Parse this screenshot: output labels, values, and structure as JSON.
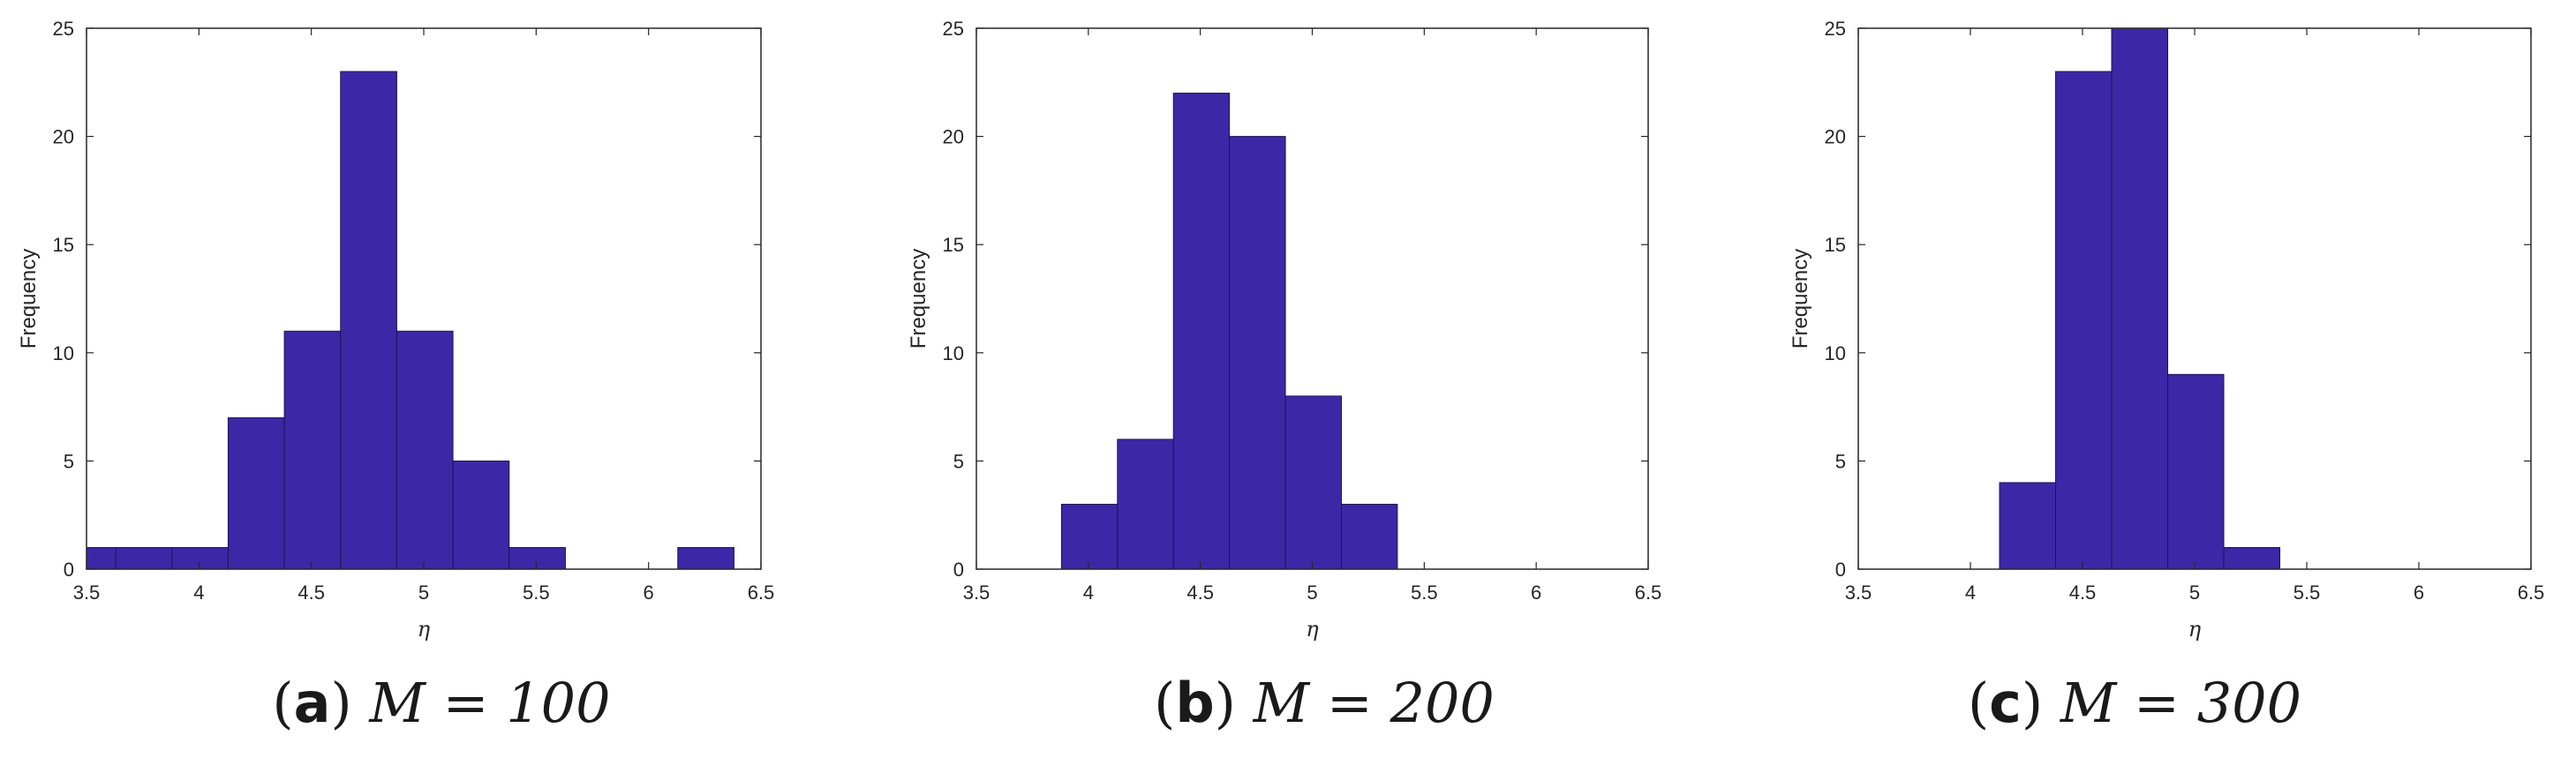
{
  "style": {
    "bar_color": "#3c27a6",
    "bar_edge": "#1d1652",
    "axis_color": "#262626"
  },
  "chart_data": [
    {
      "type": "bar",
      "caption": {
        "letter": "a",
        "text": "M = 100"
      },
      "xlabel": "η",
      "ylabel": "Frequency",
      "xlim": [
        3.5,
        6.5
      ],
      "ylim": [
        0,
        25
      ],
      "xticks": [
        "3.5",
        "4",
        "4.5",
        "5",
        "5.5",
        "6",
        "6.5"
      ],
      "yticks": [
        "0",
        "5",
        "10",
        "15",
        "20",
        "25"
      ],
      "bin_width": 0.25,
      "bins": [
        {
          "start": 3.5,
          "value": 1
        },
        {
          "start": 3.63,
          "value": 1
        },
        {
          "start": 3.88,
          "value": 1
        },
        {
          "start": 4.13,
          "value": 7
        },
        {
          "start": 4.38,
          "value": 11
        },
        {
          "start": 4.63,
          "value": 23
        },
        {
          "start": 4.88,
          "value": 11
        },
        {
          "start": 5.13,
          "value": 5
        },
        {
          "start": 5.38,
          "value": 1
        },
        {
          "start": 5.63,
          "value": 0
        },
        {
          "start": 5.88,
          "value": 0
        },
        {
          "start": 6.13,
          "value": 1
        }
      ]
    },
    {
      "type": "bar",
      "caption": {
        "letter": "b",
        "text": "M = 200"
      },
      "xlabel": "η",
      "ylabel": "Frequency",
      "xlim": [
        3.5,
        6.5
      ],
      "ylim": [
        0,
        25
      ],
      "xticks": [
        "3.5",
        "4",
        "4.5",
        "5",
        "5.5",
        "6",
        "6.5"
      ],
      "yticks": [
        "0",
        "5",
        "10",
        "15",
        "20",
        "25"
      ],
      "bin_width": 0.25,
      "bins": [
        {
          "start": 3.88,
          "value": 3
        },
        {
          "start": 4.13,
          "value": 6
        },
        {
          "start": 4.38,
          "value": 22
        },
        {
          "start": 4.63,
          "value": 20
        },
        {
          "start": 4.88,
          "value": 8
        },
        {
          "start": 5.13,
          "value": 3
        }
      ]
    },
    {
      "type": "bar",
      "caption": {
        "letter": "c",
        "text": "M = 300"
      },
      "xlabel": "η",
      "ylabel": "Frequency",
      "xlim": [
        3.5,
        6.5
      ],
      "ylim": [
        0,
        25
      ],
      "xticks": [
        "3.5",
        "4",
        "4.5",
        "5",
        "5.5",
        "6",
        "6.5"
      ],
      "yticks": [
        "0",
        "5",
        "10",
        "15",
        "20",
        "25"
      ],
      "bin_width": 0.25,
      "bins": [
        {
          "start": 4.13,
          "value": 4
        },
        {
          "start": 4.38,
          "value": 23
        },
        {
          "start": 4.63,
          "value": 25
        },
        {
          "start": 4.88,
          "value": 9
        },
        {
          "start": 5.13,
          "value": 1
        }
      ]
    }
  ]
}
